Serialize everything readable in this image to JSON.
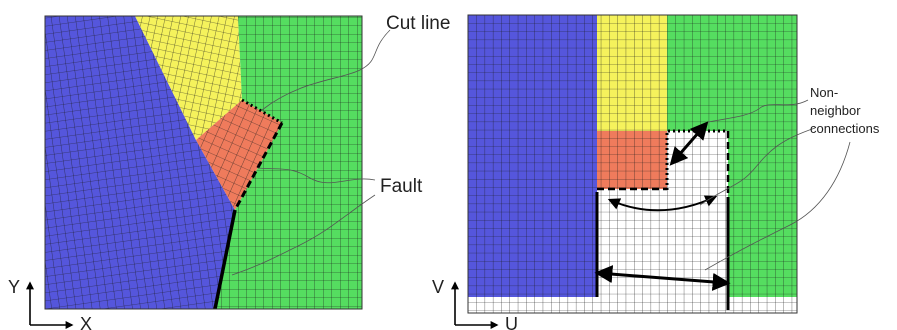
{
  "labels": {
    "cut_line": "Cut line",
    "fault": "Fault",
    "nnc": [
      "Non-",
      "neighbor",
      "connections"
    ],
    "left_axis_y": "Y",
    "left_axis_x": "X",
    "right_axis_y": "V",
    "right_axis_x": "U"
  },
  "colors": {
    "blue": "#5556dc",
    "yellow": "#f5f25c",
    "green": "#55dd60",
    "orange": "#ef7b5c",
    "white": "#ffffff",
    "grid": "#222222"
  }
}
